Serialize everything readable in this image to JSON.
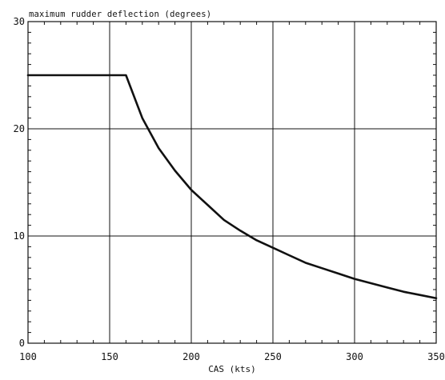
{
  "chart_data": {
    "type": "line",
    "title": "maximum rudder deflection (degrees)",
    "xlabel": "CAS (kts)",
    "ylabel": "",
    "xlim": [
      100,
      350
    ],
    "ylim": [
      0,
      30
    ],
    "xticks": [
      100,
      150,
      200,
      250,
      300,
      350
    ],
    "yticks": [
      0,
      10,
      20,
      30
    ],
    "grid": true,
    "series": [
      {
        "x": [
          100,
          160,
          170,
          180,
          190,
          200,
          210,
          220,
          230,
          240,
          250,
          260,
          270,
          280,
          290,
          300,
          310,
          320,
          330,
          340,
          350
        ],
        "y": [
          25,
          25,
          21,
          18.2,
          16.1,
          14.3,
          12.9,
          11.5,
          10.5,
          9.6,
          8.9,
          8.2,
          7.5,
          7.0,
          6.5,
          6.0,
          5.6,
          5.2,
          4.8,
          4.5,
          4.2
        ]
      }
    ]
  }
}
